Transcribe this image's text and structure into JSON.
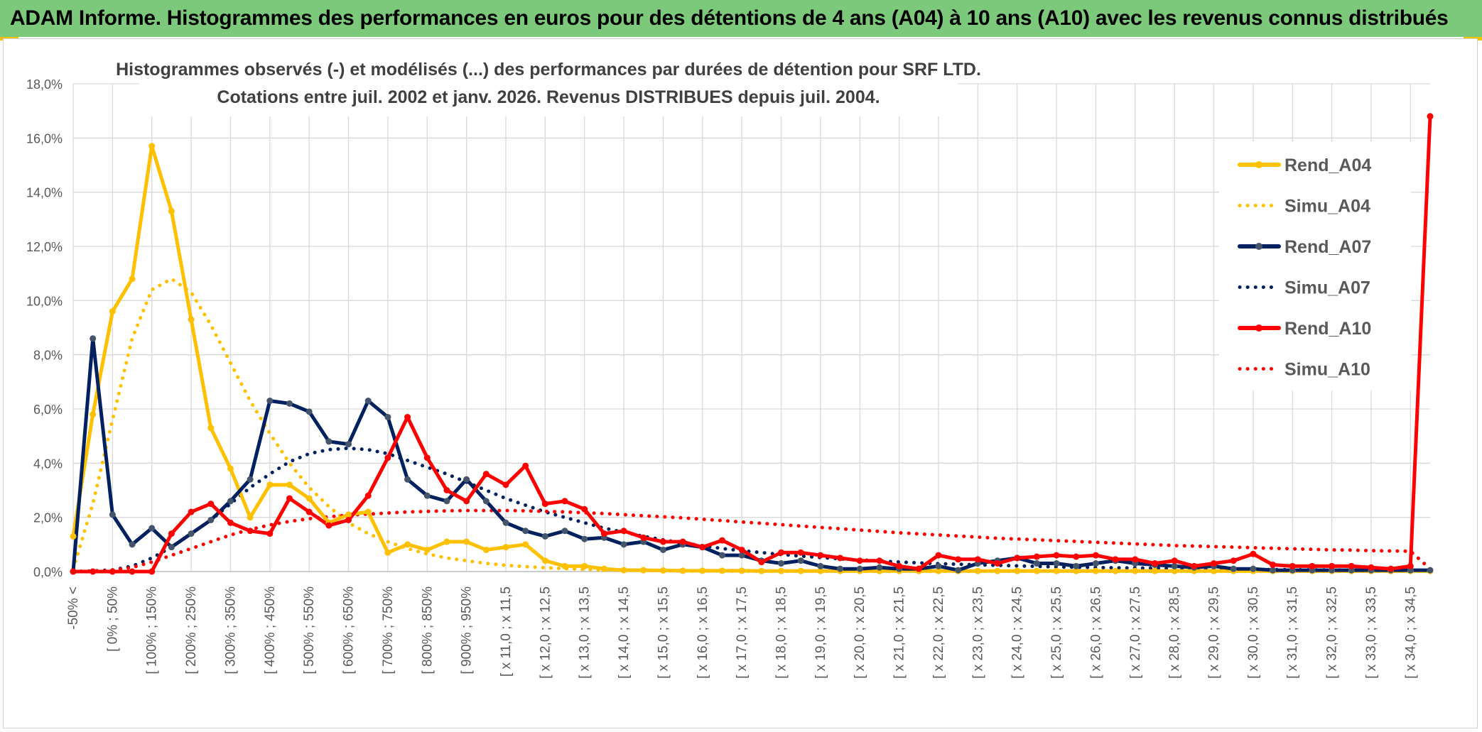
{
  "banner": {
    "title": "ADAM Informe. Histogrammes des performances en euros pour des détentions de 4 ans (A04) à 10 ans (A10) avec les revenus connus distribués"
  },
  "colors": {
    "banner_bg": "#7dc97b",
    "A04": "#ffc000",
    "A07": "#002060",
    "A10": "#ff0000",
    "marker_A07": "#44546a",
    "grid": "#d9d9d9",
    "axis_text": "#595959"
  },
  "chart_data": {
    "type": "line",
    "title_line1": "Histogrammes observés (-) et modélisés (...) des performances par durées de détention pour SRF LTD.",
    "title_line2": "Cotations entre juil. 2002 et janv. 2026. Revenus DISTRIBUES depuis juil. 2004.",
    "ylim": [
      0,
      18
    ],
    "yticks": [
      0,
      2,
      4,
      6,
      8,
      10,
      12,
      14,
      16,
      18
    ],
    "ytick_labels": [
      "0,0%",
      "2,0%",
      "4,0%",
      "6,0%",
      "8,0%",
      "10,0%",
      "12,0%",
      "14,0%",
      "16,0%",
      "18,0%"
    ],
    "legend_position": "right",
    "n_points": 70,
    "x_labels": [
      {
        "i": 0,
        "label": "-50% <"
      },
      {
        "i": 2,
        "label": "[ 0% ; 50%"
      },
      {
        "i": 4,
        "label": "[ 100% ; 150%"
      },
      {
        "i": 6,
        "label": "[ 200% ; 250%"
      },
      {
        "i": 8,
        "label": "[ 300% ; 350%"
      },
      {
        "i": 10,
        "label": "[ 400% ; 450%"
      },
      {
        "i": 12,
        "label": "[ 500% ; 550%"
      },
      {
        "i": 14,
        "label": "[ 600% ; 650%"
      },
      {
        "i": 16,
        "label": "[ 700% ; 750%"
      },
      {
        "i": 18,
        "label": "[ 800% ; 850%"
      },
      {
        "i": 20,
        "label": "[ 900% ; 950%"
      },
      {
        "i": 22,
        "label": "[ x 11,0 ; x 11,5"
      },
      {
        "i": 24,
        "label": "[ x 12,0 ; x 12,5"
      },
      {
        "i": 26,
        "label": "[ x 13,0 ; x 13,5"
      },
      {
        "i": 28,
        "label": "[ x 14,0 ; x 14,5"
      },
      {
        "i": 30,
        "label": "[ x 15,0 ; x 15,5"
      },
      {
        "i": 32,
        "label": "[ x 16,0 ; x 16,5"
      },
      {
        "i": 34,
        "label": "[ x 17,0 ; x 17,5"
      },
      {
        "i": 36,
        "label": "[ x 18,0 ; x 18,5"
      },
      {
        "i": 38,
        "label": "[ x 19,0 ; x 19,5"
      },
      {
        "i": 40,
        "label": "[ x 20,0 ; x 20,5"
      },
      {
        "i": 42,
        "label": "[ x 21,0 ; x 21,5"
      },
      {
        "i": 44,
        "label": "[ x 22,0 ; x 22,5"
      },
      {
        "i": 46,
        "label": "[ x 23,0 ; x 23,5"
      },
      {
        "i": 48,
        "label": "[ x 24,0 ; x 24,5"
      },
      {
        "i": 50,
        "label": "[ x 25,0 ; x 25,5"
      },
      {
        "i": 52,
        "label": "[ x 26,0 ; x 26,5"
      },
      {
        "i": 54,
        "label": "[ x 27,0 ; x 27,5"
      },
      {
        "i": 56,
        "label": "[ x 28,0 ; x 28,5"
      },
      {
        "i": 58,
        "label": "[ x 29,0 ; x 29,5"
      },
      {
        "i": 60,
        "label": "[ x 30,0 ; x 30,5"
      },
      {
        "i": 62,
        "label": "[ x 31,0 ; x 31,5"
      },
      {
        "i": 64,
        "label": "[ x 32,0 ; x 32,5"
      },
      {
        "i": 66,
        "label": "[ x 33,0 ; x 33,5"
      },
      {
        "i": 68,
        "label": "[ x 34,0 ; x 34,5"
      }
    ],
    "series": [
      {
        "name": "Rend_A04",
        "style": "solid",
        "color": "#ffc000",
        "values": [
          1.3,
          5.8,
          9.6,
          10.8,
          15.7,
          13.3,
          9.3,
          5.3,
          3.8,
          2.0,
          3.2,
          3.2,
          2.7,
          1.8,
          2.1,
          2.2,
          0.7,
          1.0,
          0.8,
          1.1,
          1.1,
          0.8,
          0.9,
          1.0,
          0.4,
          0.2,
          0.2,
          0.1,
          0.05,
          0.05,
          0.04,
          0.03,
          0.03,
          0.03,
          0.03,
          0.02,
          0.02,
          0.02,
          0.02,
          0.02,
          0.02,
          0.02,
          0.02,
          0.02,
          0.02,
          0.02,
          0.02,
          0.02,
          0.02,
          0.02,
          0.02,
          0.02,
          0.02,
          0.02,
          0.02,
          0.02,
          0.02,
          0.02,
          0.02,
          0.02,
          0.02,
          0.02,
          0.02,
          0.02,
          0.02,
          0.02,
          0.02,
          0.02,
          0.02,
          0.02
        ]
      },
      {
        "name": "Simu_A04",
        "style": "dotted",
        "color": "#ffc000",
        "values": [
          0.1,
          2.5,
          5.6,
          8.6,
          10.4,
          10.8,
          10.3,
          9.1,
          7.7,
          6.3,
          5.1,
          4.0,
          3.1,
          2.4,
          1.8,
          1.4,
          1.1,
          0.85,
          0.65,
          0.5,
          0.4,
          0.3,
          0.23,
          0.18,
          0.14,
          0.11,
          0.08,
          0.06,
          0.05,
          0.04,
          0.03,
          0.02,
          0.02,
          0.02,
          0.01,
          0.01,
          0.01,
          0.01,
          0.01,
          0.01,
          0.01,
          0.01,
          0.01,
          0.01,
          0.01,
          0.01,
          0.01,
          0.01,
          0.01,
          0.01,
          0.01,
          0.01,
          0.01,
          0.01,
          0.01,
          0.01,
          0.01,
          0.01,
          0.01,
          0.01,
          0.01,
          0.01,
          0.01,
          0.01,
          0.01,
          0.01,
          0.01,
          0.01,
          0.01,
          0.01
        ]
      },
      {
        "name": "Rend_A07",
        "style": "solid",
        "color": "#002060",
        "values": [
          0.0,
          8.6,
          2.1,
          1.0,
          1.6,
          0.9,
          1.4,
          1.9,
          2.6,
          3.4,
          6.3,
          6.2,
          5.9,
          4.8,
          4.7,
          6.3,
          5.7,
          3.4,
          2.8,
          2.6,
          3.4,
          2.6,
          1.8,
          1.5,
          1.3,
          1.5,
          1.2,
          1.25,
          1.0,
          1.1,
          0.8,
          1.0,
          0.9,
          0.6,
          0.6,
          0.4,
          0.3,
          0.4,
          0.2,
          0.1,
          0.1,
          0.15,
          0.1,
          0.1,
          0.2,
          0.05,
          0.3,
          0.4,
          0.5,
          0.3,
          0.3,
          0.2,
          0.3,
          0.4,
          0.3,
          0.25,
          0.2,
          0.15,
          0.2,
          0.1,
          0.1,
          0.05,
          0.05,
          0.05,
          0.05,
          0.05,
          0.05,
          0.05,
          0.05,
          0.05
        ]
      },
      {
        "name": "Simu_A07",
        "style": "dotted",
        "color": "#002060",
        "values": [
          0.0,
          0.02,
          0.06,
          0.2,
          0.5,
          0.9,
          1.4,
          1.9,
          2.5,
          3.1,
          3.6,
          4.05,
          4.35,
          4.5,
          4.55,
          4.5,
          4.35,
          4.1,
          3.85,
          3.6,
          3.3,
          3.0,
          2.7,
          2.45,
          2.2,
          2.0,
          1.8,
          1.6,
          1.45,
          1.3,
          1.17,
          1.05,
          0.95,
          0.85,
          0.77,
          0.7,
          0.63,
          0.57,
          0.52,
          0.47,
          0.43,
          0.39,
          0.35,
          0.32,
          0.29,
          0.27,
          0.25,
          0.23,
          0.21,
          0.19,
          0.17,
          0.16,
          0.15,
          0.14,
          0.13,
          0.12,
          0.11,
          0.1,
          0.09,
          0.08,
          0.08,
          0.07,
          0.07,
          0.06,
          0.06,
          0.05,
          0.05,
          0.05,
          0.04,
          0.04
        ]
      },
      {
        "name": "Rend_A10",
        "style": "solid",
        "color": "#ff0000",
        "values": [
          0.0,
          0.0,
          0.0,
          0.0,
          0.0,
          1.4,
          2.2,
          2.5,
          1.8,
          1.5,
          1.4,
          2.7,
          2.2,
          1.7,
          1.9,
          2.8,
          4.2,
          5.7,
          4.2,
          3.0,
          2.6,
          3.6,
          3.2,
          3.9,
          2.5,
          2.6,
          2.3,
          1.4,
          1.5,
          1.25,
          1.1,
          1.1,
          0.9,
          1.15,
          0.8,
          0.35,
          0.7,
          0.7,
          0.6,
          0.5,
          0.4,
          0.4,
          0.2,
          0.1,
          0.6,
          0.45,
          0.45,
          0.3,
          0.5,
          0.55,
          0.6,
          0.55,
          0.6,
          0.45,
          0.45,
          0.3,
          0.4,
          0.2,
          0.3,
          0.4,
          0.65,
          0.25,
          0.2,
          0.2,
          0.2,
          0.2,
          0.15,
          0.1,
          0.2,
          16.8
        ]
      },
      {
        "name": "Simu_A10",
        "style": "dotted",
        "color": "#ff0000",
        "values": [
          0.0,
          0.01,
          0.05,
          0.15,
          0.35,
          0.6,
          0.85,
          1.1,
          1.35,
          1.55,
          1.72,
          1.85,
          1.95,
          2.02,
          2.08,
          2.12,
          2.16,
          2.2,
          2.22,
          2.24,
          2.25,
          2.25,
          2.25,
          2.24,
          2.22,
          2.2,
          2.17,
          2.14,
          2.1,
          2.06,
          2.02,
          1.98,
          1.93,
          1.88,
          1.83,
          1.78,
          1.73,
          1.68,
          1.63,
          1.58,
          1.53,
          1.48,
          1.43,
          1.39,
          1.35,
          1.31,
          1.27,
          1.23,
          1.2,
          1.17,
          1.14,
          1.11,
          1.08,
          1.05,
          1.02,
          0.99,
          0.96,
          0.94,
          0.92,
          0.9,
          0.88,
          0.86,
          0.84,
          0.82,
          0.8,
          0.79,
          0.77,
          0.76,
          0.75,
          0.1
        ]
      }
    ]
  }
}
